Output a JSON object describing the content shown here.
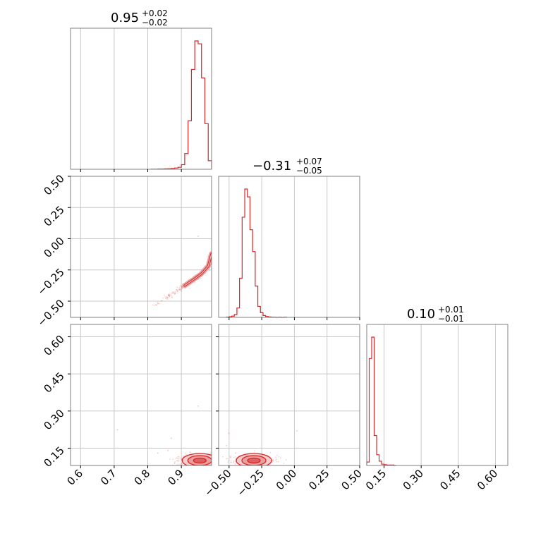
{
  "chart_data": {
    "type": "corner",
    "color": "#d62728",
    "grid": true,
    "panels": {
      "hist_0": {
        "type": "histogram",
        "title": {
          "main": "0.95",
          "plus": "+0.02",
          "minus": "−0.02"
        },
        "xlim": [
          0.57,
          0.99
        ],
        "bins_start": 0.81,
        "bins_end": 0.99,
        "counts": [
          1,
          1,
          2,
          2,
          3,
          4,
          6,
          9,
          14,
          32,
          110,
          340,
          700,
          900,
          880,
          640,
          320,
          60
        ]
      },
      "hist_1": {
        "type": "histogram",
        "title": {
          "main": "−0.31",
          "plus": "+0.07",
          "minus": "−0.05"
        },
        "xlim": [
          -0.58,
          0.5
        ],
        "bins_start": -0.52,
        "bins_end": -0.06,
        "counts": [
          2,
          4,
          8,
          18,
          60,
          250,
          640,
          820,
          770,
          560,
          420,
          200,
          70,
          30,
          12,
          6,
          3,
          2,
          1,
          0,
          1,
          0,
          1
        ]
      },
      "hist_2": {
        "type": "histogram",
        "title": {
          "main": "0.10",
          "plus": "+0.01",
          "minus": "−0.01"
        },
        "xlim": [
          0.08,
          0.65
        ],
        "bins_start": 0.08,
        "bins_end": 0.2,
        "counts": [
          8,
          250,
          300,
          70,
          25,
          10,
          3,
          2,
          1,
          1,
          1,
          0
        ]
      },
      "scatter_1_0": {
        "type": "scatter_contour",
        "xlim": [
          0.57,
          0.99
        ],
        "ylim": [
          -0.63,
          0.5
        ],
        "ridge": [
          [
            0.81,
            -0.545
          ],
          [
            0.85,
            -0.48
          ],
          [
            0.88,
            -0.43
          ],
          [
            0.91,
            -0.375
          ],
          [
            0.94,
            -0.32
          ],
          [
            0.96,
            -0.28
          ],
          [
            0.98,
            -0.22
          ],
          [
            0.99,
            -0.12
          ]
        ],
        "outliers": [
          [
            0.95,
            0.02
          ],
          [
            0.83,
            -0.52
          ],
          [
            0.86,
            -0.47
          ]
        ]
      },
      "scatter_2_0": {
        "type": "scatter_contour",
        "xlim": [
          0.57,
          0.99
        ],
        "ylim": [
          0.08,
          0.65
        ],
        "center": [
          0.955,
          0.1
        ],
        "outliers": [
          [
            0.71,
            0.225
          ],
          [
            0.87,
            0.19
          ],
          [
            0.95,
            0.32
          ],
          [
            0.83,
            0.13
          ],
          [
            0.86,
            0.14
          ]
        ]
      },
      "scatter_2_1": {
        "type": "scatter_contour",
        "xlim": [
          -0.58,
          0.5
        ],
        "ylim": [
          0.08,
          0.65
        ],
        "center": [
          -0.31,
          0.1
        ],
        "outliers": [
          [
            -0.52,
            0.16
          ],
          [
            -0.5,
            0.21
          ],
          [
            0.02,
            0.22
          ],
          [
            -0.45,
            0.13
          ]
        ]
      }
    },
    "axes": {
      "x_col0": {
        "ticks": [
          0.6,
          0.7,
          0.8,
          0.9
        ],
        "labels": [
          "0.6",
          "0.7",
          "0.8",
          "0.9"
        ]
      },
      "x_col1": {
        "ticks": [
          -0.5,
          -0.25,
          0,
          0.25,
          0.5
        ],
        "labels": [
          "−0.50",
          "−0.25",
          "0.00",
          "0.25",
          "0.50"
        ]
      },
      "x_col2": {
        "ticks": [
          0.15,
          0.3,
          0.45,
          0.6
        ],
        "labels": [
          "0.15",
          "0.30",
          "0.45",
          "0.60"
        ]
      },
      "y_row1": {
        "ticks": [
          0.5,
          0.25,
          0,
          -0.25,
          -0.5
        ],
        "labels": [
          "0.50",
          "0.25",
          "0.00",
          "−0.25",
          "−0.50"
        ]
      },
      "y_row2": {
        "ticks": [
          0.6,
          0.45,
          0.3,
          0.15
        ],
        "labels": [
          "0.60",
          "0.45",
          "0.30",
          "0.15"
        ]
      }
    }
  }
}
